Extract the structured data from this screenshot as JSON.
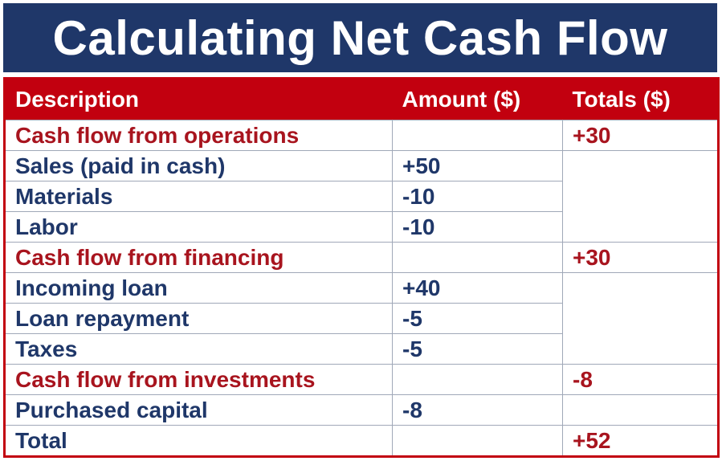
{
  "title": "Calculating Net Cash Flow",
  "table": {
    "headers": [
      "Description",
      "Amount ($)",
      "Totals ($)"
    ],
    "rows": [
      {
        "description": "Cash flow from operations",
        "amount": "",
        "total": "+30",
        "type": "section"
      },
      {
        "description": "Sales (paid in cash)",
        "amount": "+50",
        "total": "",
        "type": "item"
      },
      {
        "description": "Materials",
        "amount": "-10",
        "total": "",
        "type": "item"
      },
      {
        "description": "Labor",
        "amount": "-10",
        "total": "",
        "type": "item"
      },
      {
        "description": "Cash flow from financing",
        "amount": "",
        "total": "+30",
        "type": "section"
      },
      {
        "description": "Incoming loan",
        "amount": "+40",
        "total": "",
        "type": "item"
      },
      {
        "description": "Loan repayment",
        "amount": "-5",
        "total": "",
        "type": "item"
      },
      {
        "description": "Taxes",
        "amount": "-5",
        "total": "",
        "type": "item"
      },
      {
        "description": "Cash flow from investments",
        "amount": "",
        "total": "-8",
        "type": "section"
      },
      {
        "description": "Purchased capital",
        "amount": "-8",
        "total": "",
        "type": "item"
      },
      {
        "description": "Total",
        "amount": "",
        "total": "+52",
        "type": "total"
      }
    ]
  },
  "colors": {
    "banner": "#1f3769",
    "header": "#c2000f",
    "section_text": "#a8141e",
    "item_text": "#1f3769"
  }
}
